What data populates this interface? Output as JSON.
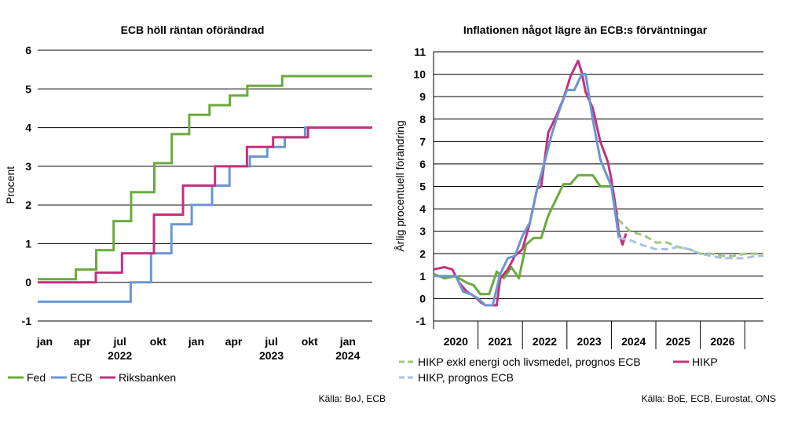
{
  "chart_data": [
    {
      "type": "line",
      "title": "ECB höll räntan oförändrad",
      "ylabel": "Procent",
      "xlabel": "",
      "ylim": [
        -1,
        6
      ],
      "yticks": [
        "-1",
        "0",
        "1",
        "2",
        "3",
        "4",
        "5",
        "6"
      ],
      "xlim": [
        "2021-12-15",
        "2024-02-29"
      ],
      "x_ticks": [
        {
          "label": "jan",
          "date": "2022-01-01"
        },
        {
          "label": "apr",
          "date": "2022-04-01"
        },
        {
          "label": "jul",
          "date": "2022-07-01"
        },
        {
          "label": "okt",
          "date": "2022-10-01"
        },
        {
          "label": "jan",
          "date": "2023-01-01"
        },
        {
          "label": "apr",
          "date": "2023-04-01"
        },
        {
          "label": "jul",
          "date": "2023-07-01"
        },
        {
          "label": "okt",
          "date": "2023-10-01"
        },
        {
          "label": "jan",
          "date": "2024-01-01"
        }
      ],
      "year_labels": [
        {
          "label": "2022",
          "date": "2022-07-01"
        },
        {
          "label": "2023",
          "date": "2023-07-01"
        },
        {
          "label": "2024",
          "date": "2024-01-01"
        }
      ],
      "grid": "horizontal",
      "legend_position": "bottom",
      "series": [
        {
          "name": "Fed",
          "color": "#6aaa3e",
          "step": true,
          "x": [
            "2021-12-15",
            "2022-03-17",
            "2022-05-05",
            "2022-06-16",
            "2022-07-28",
            "2022-09-22",
            "2022-11-03",
            "2022-12-15",
            "2023-02-02",
            "2023-03-23",
            "2023-05-04",
            "2023-07-27",
            "2024-02-29"
          ],
          "y": [
            0.08,
            0.33,
            0.83,
            1.58,
            2.33,
            3.08,
            3.83,
            4.33,
            4.58,
            4.83,
            5.08,
            5.33,
            5.33
          ]
        },
        {
          "name": "ECB",
          "color": "#6a96d4",
          "step": true,
          "x": [
            "2021-12-15",
            "2022-07-27",
            "2022-09-14",
            "2022-11-02",
            "2022-12-21",
            "2023-02-08",
            "2023-03-22",
            "2023-05-10",
            "2023-06-21",
            "2023-08-02",
            "2023-09-20",
            "2024-02-29"
          ],
          "y": [
            -0.5,
            0.0,
            0.75,
            1.5,
            2.0,
            2.5,
            3.0,
            3.25,
            3.5,
            3.75,
            4.0,
            4.0
          ]
        },
        {
          "name": "Riksbanken",
          "color": "#c5317d",
          "step": true,
          "x": [
            "2021-12-15",
            "2022-05-04",
            "2022-07-06",
            "2022-09-21",
            "2022-11-30",
            "2023-02-15",
            "2023-05-03",
            "2023-07-05",
            "2023-09-27",
            "2024-02-29"
          ],
          "y": [
            0.0,
            0.25,
            0.75,
            1.75,
            2.5,
            3.0,
            3.5,
            3.75,
            4.0,
            4.0
          ]
        }
      ],
      "source": "Källa: BoJ, ECB"
    },
    {
      "type": "line",
      "title": "Inflationen något lägre än ECB:s förväntningar",
      "ylabel": "Årlig procentuell förändring",
      "xlabel": "",
      "ylim": [
        -1,
        11
      ],
      "yticks": [
        "-1",
        "0",
        "1",
        "2",
        "3",
        "4",
        "5",
        "6",
        "7",
        "8",
        "9",
        "10",
        "11"
      ],
      "xlim": [
        2019.5,
        2026.92
      ],
      "x_categories": [
        "2020",
        "2021",
        "2022",
        "2023",
        "2024",
        "2025",
        "2026"
      ],
      "grid": "horizontal",
      "legend_position": "bottom",
      "series": [
        {
          "name": "HIKP exkl energi och livsmedel, prognos ECB",
          "color": "#6aaa3e",
          "x": [
            2019.5,
            2019.75,
            2020.0,
            2020.08,
            2020.25,
            2020.4,
            2020.55,
            2020.75,
            2020.92,
            2021.08,
            2021.25,
            2021.42,
            2021.58,
            2021.75,
            2021.92,
            2022.08,
            2022.25,
            2022.42,
            2022.58,
            2022.75,
            2022.92,
            2023.08,
            2023.25,
            2023.42,
            2023.5
          ],
          "y": [
            1.1,
            0.9,
            1.0,
            0.9,
            0.7,
            0.6,
            0.2,
            0.2,
            1.2,
            0.9,
            1.4,
            0.9,
            2.4,
            2.7,
            2.7,
            3.7,
            4.4,
            5.1,
            5.1,
            5.5,
            5.5,
            5.5,
            5.0,
            5.0,
            5.0
          ]
        },
        {
          "name": "HIKP exkl energi och livsmedel, prognos ECB (prognos)",
          "color": "#9bc87e",
          "dashed": true,
          "x": [
            2023.5,
            2023.67,
            2023.92,
            2024.25,
            2024.5,
            2024.75,
            2025.0,
            2025.25,
            2025.5,
            2025.75,
            2026.0,
            2026.25,
            2026.5,
            2026.75,
            2026.92
          ],
          "y": [
            5.0,
            3.5,
            3.0,
            2.8,
            2.5,
            2.5,
            2.3,
            2.2,
            2.0,
            2.0,
            1.9,
            1.9,
            2.0,
            2.0,
            2.0
          ]
        },
        {
          "name": "HIKP",
          "color": "#c5317d",
          "x": [
            2019.5,
            2019.75,
            2019.92,
            2020.08,
            2020.25,
            2020.42,
            2020.58,
            2020.67,
            2020.83,
            2020.92,
            2021.0,
            2021.17,
            2021.33,
            2021.5,
            2021.67,
            2021.83,
            2021.92,
            2022.08,
            2022.25,
            2022.42,
            2022.58,
            2022.75,
            2022.83,
            2022.92,
            2023.08,
            2023.25,
            2023.42,
            2023.5,
            2023.58,
            2023.67,
            2023.75,
            2023.83
          ],
          "y": [
            1.3,
            1.4,
            1.3,
            0.7,
            0.3,
            0.1,
            -0.2,
            -0.3,
            -0.3,
            -0.3,
            0.9,
            1.3,
            1.9,
            2.2,
            3.4,
            4.9,
            5.0,
            7.4,
            8.1,
            8.9,
            9.9,
            10.6,
            10.1,
            9.2,
            8.5,
            7.0,
            6.1,
            5.3,
            4.3,
            2.9,
            2.4,
            2.9
          ]
        },
        {
          "name": "HIKP, prognos ECB",
          "color": "#6a96d4",
          "x": [
            2019.5,
            2019.75,
            2020.0,
            2020.17,
            2020.33,
            2020.5,
            2020.67,
            2020.83,
            2021.0,
            2021.17,
            2021.33,
            2021.5,
            2021.67,
            2021.83,
            2022.0,
            2022.17,
            2022.33,
            2022.5,
            2022.67,
            2022.83,
            2022.92,
            2023.08,
            2023.25,
            2023.5,
            2023.67
          ],
          "y": [
            1.0,
            1.0,
            1.0,
            0.3,
            0.2,
            0.0,
            -0.3,
            -0.3,
            1.1,
            1.8,
            1.9,
            2.8,
            3.4,
            4.9,
            6.1,
            7.4,
            8.4,
            9.3,
            9.3,
            10.0,
            10.0,
            8.0,
            6.2,
            5.0,
            2.7
          ]
        },
        {
          "name": "HIKP, prognos ECB (prognos)",
          "color": "#a7c1e6",
          "dashed": true,
          "x": [
            2023.67,
            2023.92,
            2024.17,
            2024.5,
            2024.75,
            2025.0,
            2025.25,
            2025.5,
            2025.75,
            2026.0,
            2026.25,
            2026.5,
            2026.75,
            2026.92
          ],
          "y": [
            2.7,
            2.6,
            2.4,
            2.2,
            2.2,
            2.3,
            2.2,
            2.0,
            1.9,
            1.8,
            1.8,
            1.8,
            1.9,
            1.9
          ]
        }
      ],
      "source": "Källa: BoE, ECB, Eurostat, ONS"
    }
  ],
  "legends": {
    "left": [
      "Fed",
      "ECB",
      "Riksbanken"
    ],
    "right": [
      "HIKP exkl energi och livsmedel, prognos ECB",
      "HIKP",
      "HIKP, prognos ECB"
    ]
  },
  "colors": {
    "green": "#6aaa3e",
    "blue": "#6a96d4",
    "magenta": "#c5317d",
    "green_light": "#9bc87e",
    "blue_light": "#a7c1e6",
    "grid": "#000000"
  }
}
